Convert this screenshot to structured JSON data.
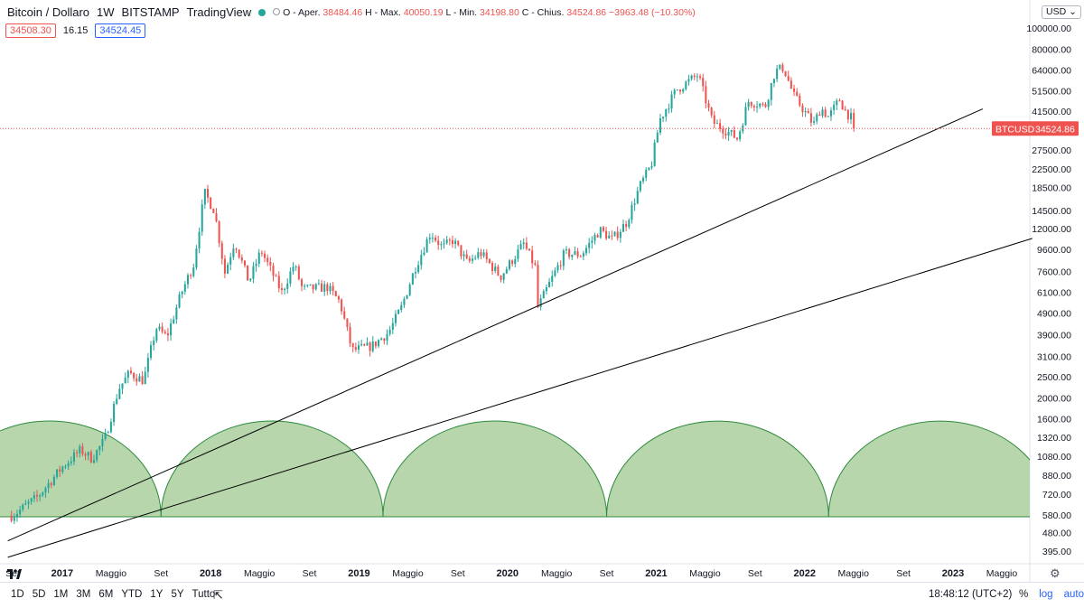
{
  "header": {
    "symbol": "Bitcoin / Dollaro",
    "interval": "1W",
    "exchange": "BITSTAMP",
    "source": "TradingView",
    "ohlc": {
      "open_label": "O - Aper.",
      "open": "38484.46",
      "high_label": "H - Max.",
      "high": "40050.19",
      "low_label": "L - Min.",
      "low": "34198.80",
      "close_label": "C - Chius.",
      "close": "34524.86",
      "change": "−3963.48 (−10.30%)"
    },
    "bid": "34508.30",
    "spread": "16.15",
    "ask": "34524.45",
    "currency": "USD"
  },
  "price_label": {
    "name": "BTCUSD",
    "value": "34524.86"
  },
  "bottom": {
    "timeframes": [
      "1D",
      "5D",
      "1M",
      "3M",
      "6M",
      "YTD",
      "1Y",
      "5Y",
      "Tutto"
    ],
    "clock": "18:48:12 (UTC+2)",
    "modes": [
      "%",
      "log",
      "auto"
    ]
  },
  "icons": {
    "calendar": "calendar-range-icon",
    "settings": "gear-icon",
    "logo": "tradingview-logo-icon"
  },
  "colors": {
    "up": "#26a69a",
    "down": "#ef5350",
    "cycle_fill": "#b7d6ac",
    "cycle_stroke": "#2e8b3d",
    "trendline": "#000000"
  },
  "chart_data": {
    "type": "candlestick",
    "scale": "log",
    "y_ticks": [
      100000,
      80000,
      64000,
      51500,
      41500,
      34500,
      27500,
      22500,
      18500,
      14500,
      12000,
      9600,
      7600,
      6100,
      4900,
      3900,
      3100,
      2500,
      2000,
      1600,
      1320,
      1080,
      880,
      720,
      580,
      480,
      395
    ],
    "y_tick_labels": [
      "100000.00",
      "80000.00",
      "64000.00",
      "51500.00",
      "41500.00",
      "",
      "27500.00",
      "22500.00",
      "18500.00",
      "14500.00",
      "12000.00",
      "9600.00",
      "7600.00",
      "6100.00",
      "4900.00",
      "3900.00",
      "3100.00",
      "2500.00",
      "2000.00",
      "1600.00",
      "1320.00",
      "1080.00",
      "880.00",
      "720.00",
      "580.00",
      "480.00",
      "395.00"
    ],
    "x_tick_dates": [
      "2016-09-01",
      "2017-01-01",
      "2017-05-01",
      "2017-09-01",
      "2018-01-01",
      "2018-05-01",
      "2018-09-01",
      "2019-01-01",
      "2019-05-01",
      "2019-09-01",
      "2020-01-01",
      "2020-05-01",
      "2020-09-01",
      "2021-01-01",
      "2021-05-01",
      "2021-09-01",
      "2022-01-01",
      "2022-05-01",
      "2022-09-01",
      "2023-01-01",
      "2023-05-01"
    ],
    "x_tick_labels": [
      "Set",
      "2017",
      "Maggio",
      "Set",
      "2018",
      "Maggio",
      "Set",
      "2019",
      "Maggio",
      "Set",
      "2020",
      "Maggio",
      "Set",
      "2021",
      "Maggio",
      "Set",
      "2022",
      "Maggio",
      "Set",
      "2023",
      "Maggio"
    ],
    "last_price": 34524.86,
    "anchors": [
      [
        "2016-09-01",
        575
      ],
      [
        "2016-11-01",
        700
      ],
      [
        "2017-01-01",
        960
      ],
      [
        "2017-02-15",
        1150
      ],
      [
        "2017-03-15",
        1050
      ],
      [
        "2017-04-15",
        1280
      ],
      [
        "2017-05-20",
        2200
      ],
      [
        "2017-06-15",
        2600
      ],
      [
        "2017-07-20",
        2400
      ],
      [
        "2017-08-20",
        4200
      ],
      [
        "2017-09-15",
        3800
      ],
      [
        "2017-10-20",
        6000
      ],
      [
        "2017-11-20",
        8200
      ],
      [
        "2017-12-17",
        17500
      ],
      [
        "2018-01-10",
        14500
      ],
      [
        "2018-02-05",
        7500
      ],
      [
        "2018-03-01",
        10500
      ],
      [
        "2018-04-05",
        6800
      ],
      [
        "2018-05-05",
        9500
      ],
      [
        "2018-06-25",
        6100
      ],
      [
        "2018-07-25",
        8200
      ],
      [
        "2018-08-15",
        6300
      ],
      [
        "2018-10-15",
        6450
      ],
      [
        "2018-11-15",
        5500
      ],
      [
        "2018-12-15",
        3300
      ],
      [
        "2019-02-01",
        3450
      ],
      [
        "2019-03-15",
        4000
      ],
      [
        "2019-04-15",
        5200
      ],
      [
        "2019-05-20",
        8000
      ],
      [
        "2019-06-26",
        11500
      ],
      [
        "2019-07-25",
        9800
      ],
      [
        "2019-08-20",
        10600
      ],
      [
        "2019-09-25",
        8300
      ],
      [
        "2019-10-26",
        9300
      ],
      [
        "2019-12-15",
        7200
      ],
      [
        "2020-02-10",
        10200
      ],
      [
        "2020-03-10",
        7900
      ],
      [
        "2020-03-16",
        5200
      ],
      [
        "2020-04-15",
        6800
      ],
      [
        "2020-05-20",
        9200
      ],
      [
        "2020-07-01",
        9100
      ],
      [
        "2020-08-15",
        11800
      ],
      [
        "2020-09-15",
        10700
      ],
      [
        "2020-10-20",
        12800
      ],
      [
        "2020-11-20",
        18500
      ],
      [
        "2020-12-20",
        23500
      ],
      [
        "2021-01-10",
        38000
      ],
      [
        "2021-02-20",
        52000
      ],
      [
        "2021-04-14",
        61000
      ],
      [
        "2021-05-19",
        37000
      ],
      [
        "2021-06-20",
        34000
      ],
      [
        "2021-07-20",
        31000
      ],
      [
        "2021-08-15",
        46000
      ],
      [
        "2021-09-10",
        45000
      ],
      [
        "2021-09-25",
        43000
      ],
      [
        "2021-10-20",
        63000
      ],
      [
        "2021-11-10",
        66000
      ],
      [
        "2021-12-05",
        49000
      ],
      [
        "2022-01-23",
        36000
      ],
      [
        "2022-02-10",
        43000
      ],
      [
        "2022-03-01",
        39000
      ],
      [
        "2022-03-28",
        47000
      ],
      [
        "2022-04-10",
        42000
      ],
      [
        "2022-04-26",
        38500
      ],
      [
        "2022-05-02",
        34524.86
      ]
    ],
    "trendlines": [
      {
        "from": [
          "2016-08-20",
          440
        ],
        "to": [
          "2023-03-15",
          42500
        ]
      },
      {
        "from": [
          "2016-08-20",
          370
        ],
        "to": [
          "2023-07-15",
          10800
        ]
      }
    ],
    "cycle_arcs": [
      [
        "2016-03-01",
        "2017-09-01"
      ],
      [
        "2017-09-01",
        "2019-03-01"
      ],
      [
        "2019-03-01",
        "2020-09-01"
      ],
      [
        "2020-09-01",
        "2022-03-01"
      ],
      [
        "2022-03-01",
        "2023-09-01"
      ],
      [
        "2023-09-01",
        "2025-03-01"
      ]
    ]
  }
}
